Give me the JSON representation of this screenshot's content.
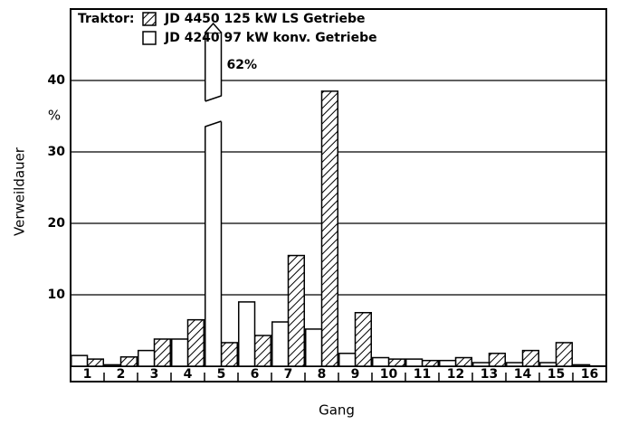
{
  "chart_data": {
    "type": "bar",
    "y_label": "Verweildauer",
    "y_unit": "%",
    "x_label": "Gang",
    "legend_title": "Traktor:",
    "categories": [
      "1",
      "2",
      "3",
      "4",
      "5",
      "6",
      "7",
      "8",
      "9",
      "10",
      "11",
      "12",
      "13",
      "14",
      "15",
      "16"
    ],
    "series": [
      {
        "name": "JD 4450  125 kW LS Getriebe",
        "color": "#000000",
        "pattern": "hatch",
        "values": [
          1.0,
          1.3,
          3.8,
          6.5,
          3.3,
          4.3,
          15.5,
          38.5,
          7.5,
          1.0,
          0.8,
          1.2,
          1.8,
          2.2,
          3.3,
          0
        ]
      },
      {
        "name": "JD 4240  97 kW konv. Getriebe",
        "color": "#ffffff",
        "pattern": "none",
        "values": [
          1.5,
          0.2,
          2.2,
          3.8,
          62,
          9.0,
          6.2,
          5.2,
          1.8,
          1.2,
          1.0,
          0.8,
          0.5,
          0.5,
          0.5,
          0.2
        ],
        "value_labels": [
          null,
          null,
          null,
          null,
          "62%",
          null,
          null,
          null,
          null,
          null,
          null,
          null,
          null,
          null,
          null,
          null
        ]
      }
    ],
    "ylim": [
      0,
      50
    ],
    "yticks": [
      10,
      20,
      30,
      40
    ],
    "grid": true
  }
}
